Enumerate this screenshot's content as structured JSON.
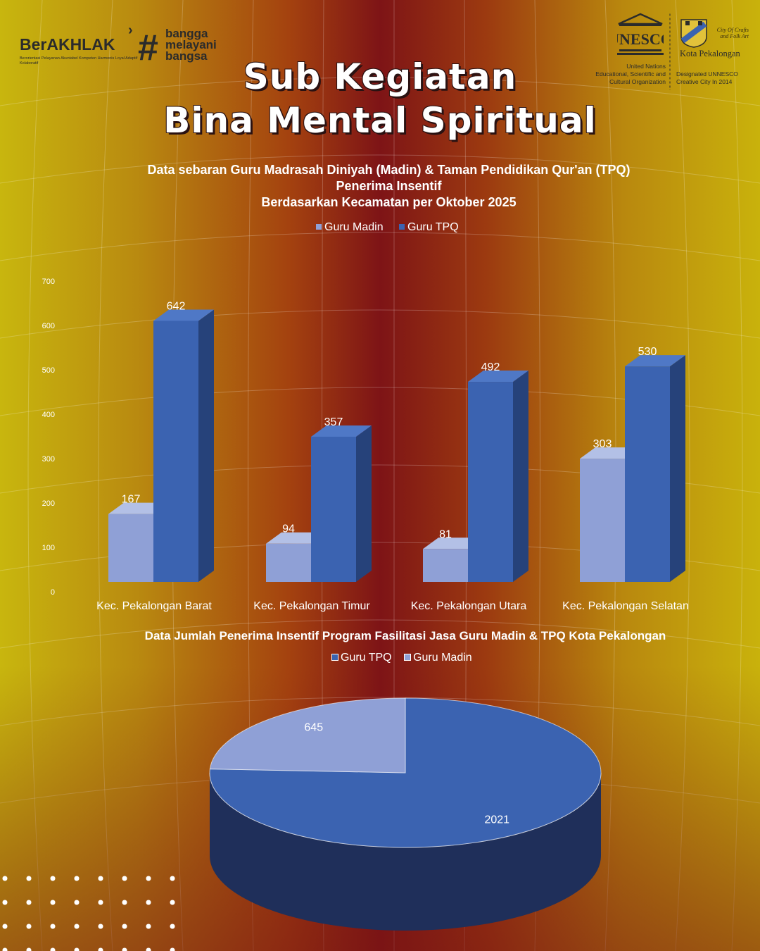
{
  "branding": {
    "left_logo": "BerAKHLAK",
    "left_logo_sub": "Berorientasi Pelayanan Akuntabel Kompeten Harmonis Loyal Adaptif Kolaboratif",
    "hashtag": "#",
    "tagline": [
      "bangga",
      "melayani",
      "bangsa"
    ],
    "unesco_wordmark": "UNESCO",
    "unesco_org": [
      "United Nations",
      "Educational, Scientific and",
      "Cultural Organization"
    ],
    "city_label": [
      "City Of Crafts",
      "and Folk Art"
    ],
    "kota": "Kota Pekalongan",
    "designation": [
      "Designated UNNESCO",
      "Creative City In 2014"
    ]
  },
  "headline": [
    "Sub Kegiatan",
    "Bina Mental Spiritual"
  ],
  "colors": {
    "madin": "#8fa0d6",
    "tpq": "#3b63b1",
    "text": "#ffffff"
  },
  "chart_data": [
    {
      "type": "bar",
      "title": [
        "Data sebaran Guru Madrasah Diniyah (Madin) & Taman Pendidikan Qur'an (TPQ)",
        "Penerima Insentif",
        "Berdasarkan Kecamatan per Oktober 2025"
      ],
      "categories": [
        "Kec. Pekalongan Barat",
        "Kec. Pekalongan Timur",
        "Kec. Pekalongan Utara",
        "Kec. Pekalongan Selatan"
      ],
      "series": [
        {
          "name": "Guru Madin",
          "values": [
            167,
            94,
            81,
            303
          ]
        },
        {
          "name": "Guru TPQ",
          "values": [
            642,
            357,
            492,
            530
          ]
        }
      ],
      "yticks": [
        "700",
        "600",
        "500",
        "400",
        "300",
        "200",
        "100",
        "0"
      ],
      "ylim": [
        0,
        700
      ],
      "legend": "top-center",
      "grid": false
    },
    {
      "type": "pie",
      "title": "Data Jumlah Penerima Insentif Program Fasilitasi Jasa Guru Madin & TPQ Kota Pekalongan",
      "labels": [
        "Guru TPQ",
        "Guru Madin"
      ],
      "values": [
        2021,
        645
      ],
      "legend": "top-center"
    }
  ]
}
